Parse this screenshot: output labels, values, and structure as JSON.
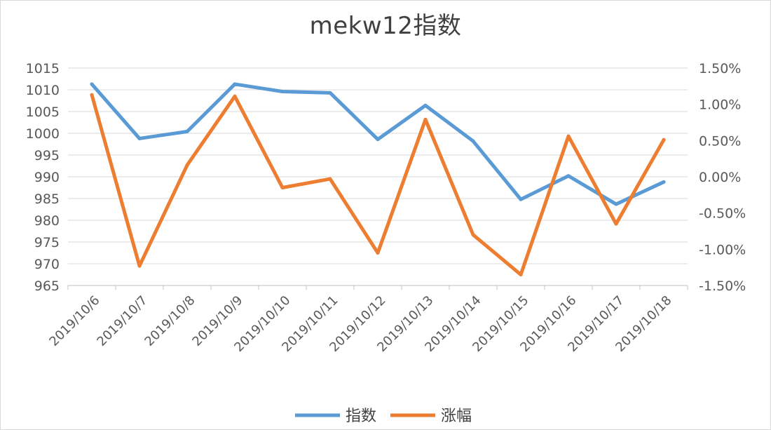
{
  "chart_data": {
    "type": "line",
    "title": "mekw12指数",
    "categories": [
      "2019/10/6",
      "2019/10/7",
      "2019/10/8",
      "2019/10/9",
      "2019/10/10",
      "2019/10/11",
      "2019/10/12",
      "2019/10/13",
      "2019/10/14",
      "2019/10/15",
      "2019/10/16",
      "2019/10/17",
      "2019/10/18"
    ],
    "left_axis": {
      "ylim": [
        965,
        1015
      ],
      "step": 5,
      "ticks": [
        "965",
        "970",
        "975",
        "980",
        "985",
        "990",
        "995",
        "1000",
        "1005",
        "1010",
        "1015"
      ]
    },
    "right_axis": {
      "ylim": [
        -0.015,
        0.015
      ],
      "step": 0.005,
      "ticks": [
        "-1.50%",
        "-1.00%",
        "-0.50%",
        "0.00%",
        "0.50%",
        "1.00%",
        "1.50%"
      ]
    },
    "series": [
      {
        "name": "指数",
        "axis": "left",
        "color": "#5b9bd5",
        "values": [
          1011.3,
          998.8,
          1000.4,
          1011.3,
          1009.6,
          1009.3,
          998.6,
          1006.4,
          998.2,
          984.8,
          990.2,
          983.7,
          988.8
        ]
      },
      {
        "name": "涨幅",
        "axis": "right",
        "color": "#ed7d31",
        "values": [
          0.0113,
          -0.0123,
          0.0016,
          0.0111,
          -0.0015,
          -0.0003,
          -0.0105,
          0.0079,
          -0.008,
          -0.0135,
          0.0056,
          -0.0065,
          0.0051
        ]
      }
    ],
    "grid": true,
    "legend": "bottom"
  }
}
